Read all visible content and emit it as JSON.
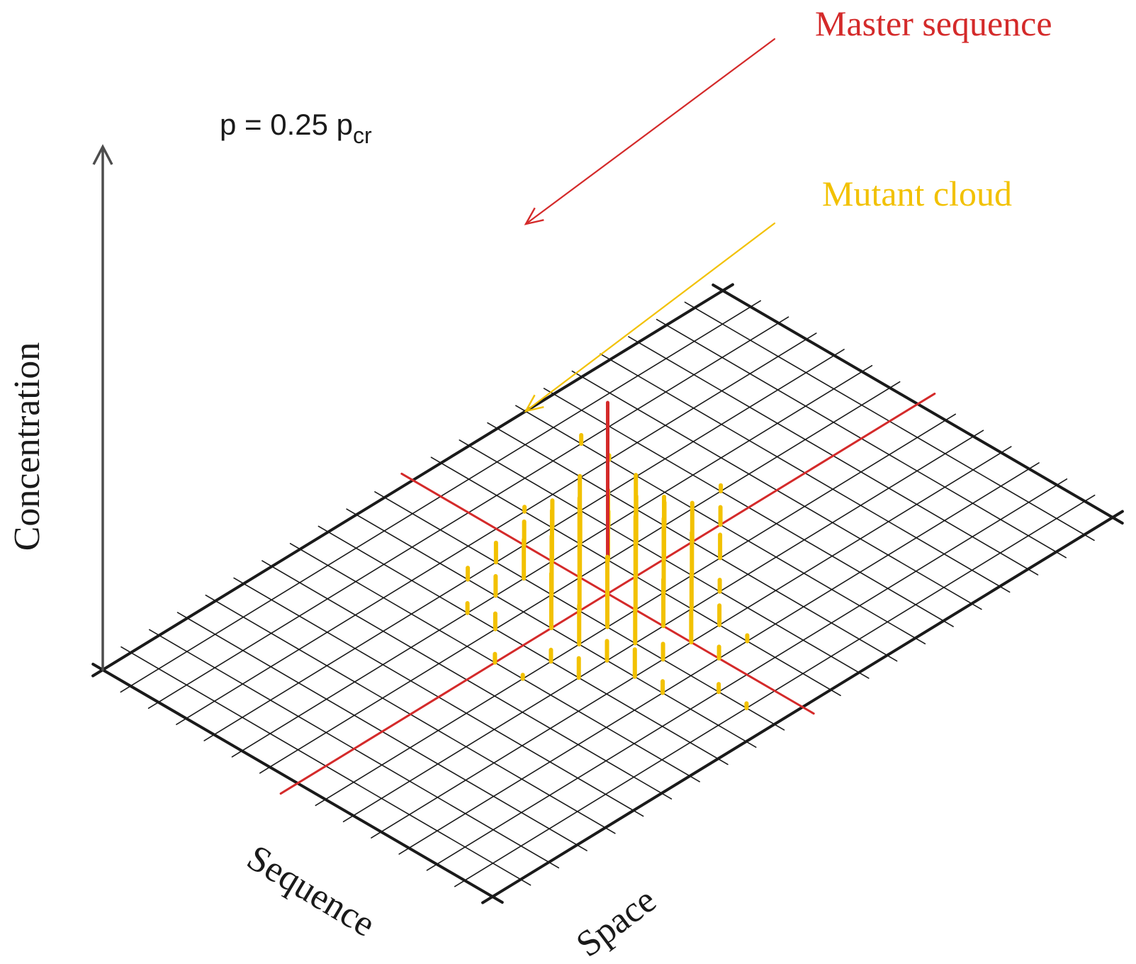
{
  "labels": {
    "master": "Master sequence",
    "mutant": "Mutant cloud",
    "p_prefix": "p = 0.25 p",
    "p_sub": "cr",
    "y_axis": "Concentration",
    "seq_axis": "Sequence",
    "space_axis": "Space"
  },
  "colors": {
    "master": "#d42a2a",
    "mutant": "#f2c100",
    "grid": "#1a1a1a",
    "axis": "#4d4d4d",
    "text": "#1a1a1a"
  },
  "grid": {
    "rows": 14,
    "cols": 22
  },
  "master_peak": {
    "row": 7,
    "col": 11,
    "height": 4.9
  },
  "mutant_bars": [
    {
      "row": 2,
      "col": 15,
      "h": 0.22
    },
    {
      "row": 3,
      "col": 15,
      "h": 0.12
    },
    {
      "row": 6,
      "col": 16,
      "h": 0.15
    },
    {
      "row": 6,
      "col": 14,
      "h": 0.6
    },
    {
      "row": 6,
      "col": 13,
      "h": 1.2
    },
    {
      "row": 6,
      "col": 12,
      "h": 1.8
    },
    {
      "row": 6,
      "col": 11,
      "h": 2.6
    },
    {
      "row": 6,
      "col": 10,
      "h": 1.5
    },
    {
      "row": 7,
      "col": 15,
      "h": 0.45
    },
    {
      "row": 7,
      "col": 14,
      "h": 1.0
    },
    {
      "row": 7,
      "col": 13,
      "h": 1.6
    },
    {
      "row": 7,
      "col": 12,
      "h": 2.6
    },
    {
      "row": 7,
      "col": 10,
      "h": 2.9
    },
    {
      "row": 7,
      "col": 9,
      "h": 1.4
    },
    {
      "row": 8,
      "col": 14,
      "h": 0.6
    },
    {
      "row": 8,
      "col": 13,
      "h": 1.1
    },
    {
      "row": 8,
      "col": 12,
      "h": 1.9
    },
    {
      "row": 8,
      "col": 11,
      "h": 2.4
    },
    {
      "row": 8,
      "col": 10,
      "h": 1.8
    },
    {
      "row": 8,
      "col": 9,
      "h": 1.0
    },
    {
      "row": 5,
      "col": 13,
      "h": 0.4
    },
    {
      "row": 5,
      "col": 12,
      "h": 0.9
    },
    {
      "row": 5,
      "col": 11,
      "h": 1.3
    },
    {
      "row": 5,
      "col": 10,
      "h": 1.0
    },
    {
      "row": 5,
      "col": 9,
      "h": 0.5
    },
    {
      "row": 9,
      "col": 13,
      "h": 0.3
    },
    {
      "row": 9,
      "col": 12,
      "h": 0.9
    },
    {
      "row": 9,
      "col": 11,
      "h": 1.2
    },
    {
      "row": 9,
      "col": 10,
      "h": 0.9
    },
    {
      "row": 9,
      "col": 9,
      "h": 0.5
    },
    {
      "row": 4,
      "col": 12,
      "h": 0.7
    },
    {
      "row": 4,
      "col": 11,
      "h": 0.6
    },
    {
      "row": 4,
      "col": 10,
      "h": 0.5
    },
    {
      "row": 10,
      "col": 12,
      "h": 0.5
    },
    {
      "row": 10,
      "col": 11,
      "h": 0.8
    },
    {
      "row": 10,
      "col": 10,
      "h": 0.4
    },
    {
      "row": 3,
      "col": 12,
      "h": 0.12
    },
    {
      "row": 11,
      "col": 11,
      "h": 0.3
    },
    {
      "row": 11,
      "col": 9,
      "h": 0.3
    },
    {
      "row": 8,
      "col": 8,
      "h": 0.3
    },
    {
      "row": 7,
      "col": 7,
      "h": 0.22
    },
    {
      "row": 6,
      "col": 8,
      "h": 0.4
    },
    {
      "row": 12,
      "col": 10,
      "h": 0.2
    },
    {
      "row": 4,
      "col": 9,
      "h": 0.3
    },
    {
      "row": 9,
      "col": 8,
      "h": 0.5
    },
    {
      "row": 10,
      "col": 9,
      "h": 0.7
    },
    {
      "row": 5,
      "col": 8,
      "h": 0.25
    },
    {
      "row": 11,
      "col": 12,
      "h": 0.15
    },
    {
      "row": 13,
      "col": 10,
      "h": 0.12
    },
    {
      "row": 8,
      "col": 7,
      "h": 0.1
    }
  ]
}
